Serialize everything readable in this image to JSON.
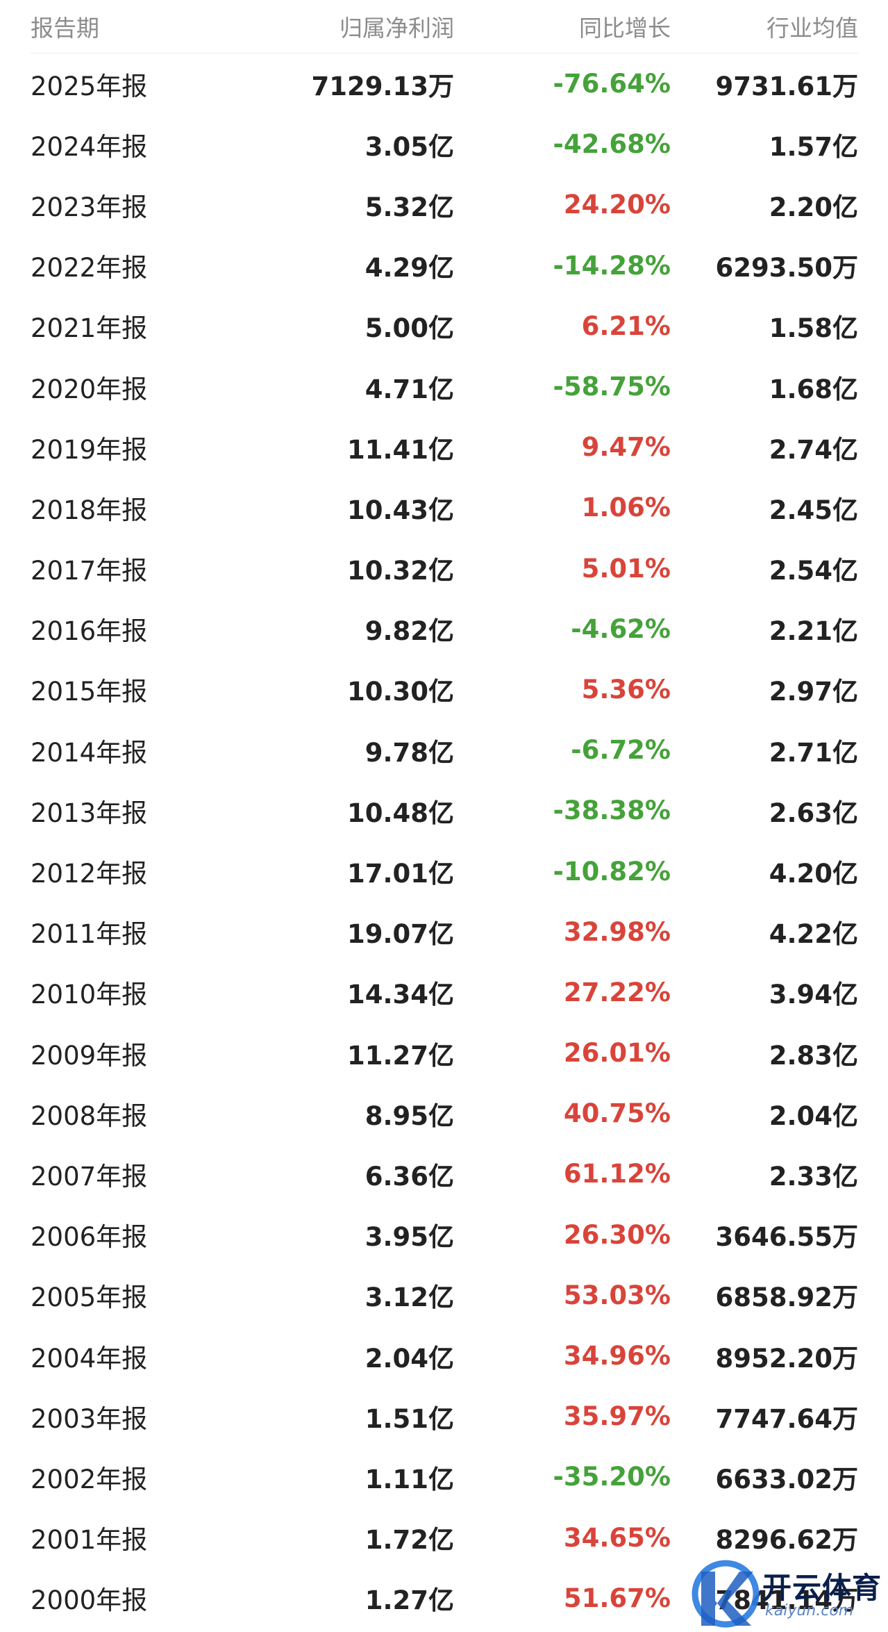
{
  "headers": [
    "报告期",
    "归属净利润",
    "同比增长",
    "行业均值"
  ],
  "rows": [
    {
      "period": "2025年报",
      "net_profit": "7129.13万",
      "yoy": "-76.64%",
      "industry_avg": "9731.61万",
      "trend": "down"
    },
    {
      "period": "2024年报",
      "net_profit": "3.05亿",
      "yoy": "-42.68%",
      "industry_avg": "1.57亿",
      "trend": "down"
    },
    {
      "period": "2023年报",
      "net_profit": "5.32亿",
      "yoy": "24.20%",
      "industry_avg": "2.20亿",
      "trend": "up"
    },
    {
      "period": "2022年报",
      "net_profit": "4.29亿",
      "yoy": "-14.28%",
      "industry_avg": "6293.50万",
      "trend": "down"
    },
    {
      "period": "2021年报",
      "net_profit": "5.00亿",
      "yoy": "6.21%",
      "industry_avg": "1.58亿",
      "trend": "up"
    },
    {
      "period": "2020年报",
      "net_profit": "4.71亿",
      "yoy": "-58.75%",
      "industry_avg": "1.68亿",
      "trend": "down"
    },
    {
      "period": "2019年报",
      "net_profit": "11.41亿",
      "yoy": "9.47%",
      "industry_avg": "2.74亿",
      "trend": "up"
    },
    {
      "period": "2018年报",
      "net_profit": "10.43亿",
      "yoy": "1.06%",
      "industry_avg": "2.45亿",
      "trend": "up"
    },
    {
      "period": "2017年报",
      "net_profit": "10.32亿",
      "yoy": "5.01%",
      "industry_avg": "2.54亿",
      "trend": "up"
    },
    {
      "period": "2016年报",
      "net_profit": "9.82亿",
      "yoy": "-4.62%",
      "industry_avg": "2.21亿",
      "trend": "down"
    },
    {
      "period": "2015年报",
      "net_profit": "10.30亿",
      "yoy": "5.36%",
      "industry_avg": "2.97亿",
      "trend": "up"
    },
    {
      "period": "2014年报",
      "net_profit": "9.78亿",
      "yoy": "-6.72%",
      "industry_avg": "2.71亿",
      "trend": "down"
    },
    {
      "period": "2013年报",
      "net_profit": "10.48亿",
      "yoy": "-38.38%",
      "industry_avg": "2.63亿",
      "trend": "down"
    },
    {
      "period": "2012年报",
      "net_profit": "17.01亿",
      "yoy": "-10.82%",
      "industry_avg": "4.20亿",
      "trend": "down"
    },
    {
      "period": "2011年报",
      "net_profit": "19.07亿",
      "yoy": "32.98%",
      "industry_avg": "4.22亿",
      "trend": "up"
    },
    {
      "period": "2010年报",
      "net_profit": "14.34亿",
      "yoy": "27.22%",
      "industry_avg": "3.94亿",
      "trend": "up"
    },
    {
      "period": "2009年报",
      "net_profit": "11.27亿",
      "yoy": "26.01%",
      "industry_avg": "2.83亿",
      "trend": "up"
    },
    {
      "period": "2008年报",
      "net_profit": "8.95亿",
      "yoy": "40.75%",
      "industry_avg": "2.04亿",
      "trend": "up"
    },
    {
      "period": "2007年报",
      "net_profit": "6.36亿",
      "yoy": "61.12%",
      "industry_avg": "2.33亿",
      "trend": "up"
    },
    {
      "period": "2006年报",
      "net_profit": "3.95亿",
      "yoy": "26.30%",
      "industry_avg": "3646.55万",
      "trend": "up"
    },
    {
      "period": "2005年报",
      "net_profit": "3.12亿",
      "yoy": "53.03%",
      "industry_avg": "6858.92万",
      "trend": "up"
    },
    {
      "period": "2004年报",
      "net_profit": "2.04亿",
      "yoy": "34.96%",
      "industry_avg": "8952.20万",
      "trend": "up"
    },
    {
      "period": "2003年报",
      "net_profit": "1.51亿",
      "yoy": "35.97%",
      "industry_avg": "7747.64万",
      "trend": "up"
    },
    {
      "period": "2002年报",
      "net_profit": "1.11亿",
      "yoy": "-35.20%",
      "industry_avg": "6633.02万",
      "trend": "down"
    },
    {
      "period": "2001年报",
      "net_profit": "1.72亿",
      "yoy": "34.65%",
      "industry_avg": "8296.62万",
      "trend": "up"
    },
    {
      "period": "2000年报",
      "net_profit": "1.27亿",
      "yoy": "51.67%",
      "industry_avg": "7841.14万",
      "trend": "up"
    }
  ],
  "colors": {
    "up": "#d9443a",
    "down": "#45a23a",
    "header": "#8c8c8c",
    "text": "#222222"
  },
  "watermark": {
    "text": "开云体育",
    "sub": "kaiyun.com"
  }
}
